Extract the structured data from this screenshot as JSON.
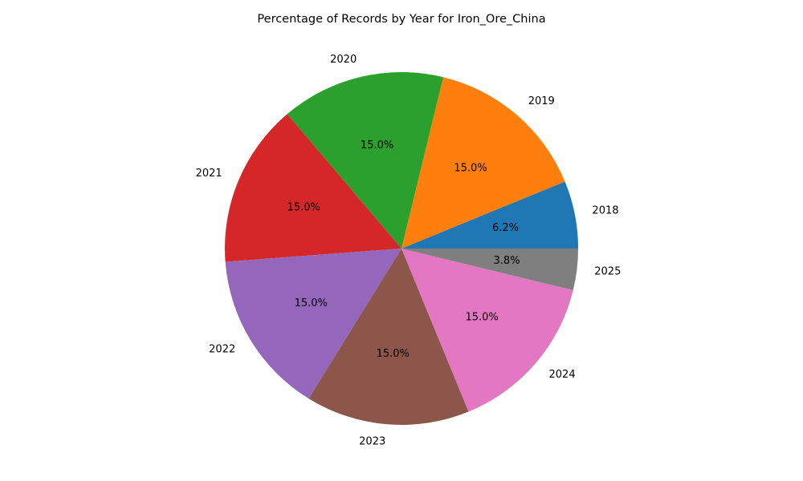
{
  "chart_data": {
    "type": "pie",
    "title": "Percentage of Records by Year for Iron_Ore_China",
    "categories": [
      "2018",
      "2019",
      "2020",
      "2021",
      "2022",
      "2023",
      "2024",
      "2025"
    ],
    "values": [
      6.2,
      15.0,
      15.0,
      15.0,
      15.0,
      15.0,
      15.0,
      3.8
    ],
    "value_labels": [
      "6.2%",
      "15.0%",
      "15.0%",
      "15.0%",
      "15.0%",
      "15.0%",
      "15.0%",
      "3.8%"
    ],
    "colors": [
      "#1f77b4",
      "#ff7f0e",
      "#2ca02c",
      "#d62728",
      "#9467bd",
      "#8c564b",
      "#e377c2",
      "#7f7f7f"
    ],
    "start_angle_deg": 0,
    "direction": "counterclockwise",
    "legend": "none"
  }
}
